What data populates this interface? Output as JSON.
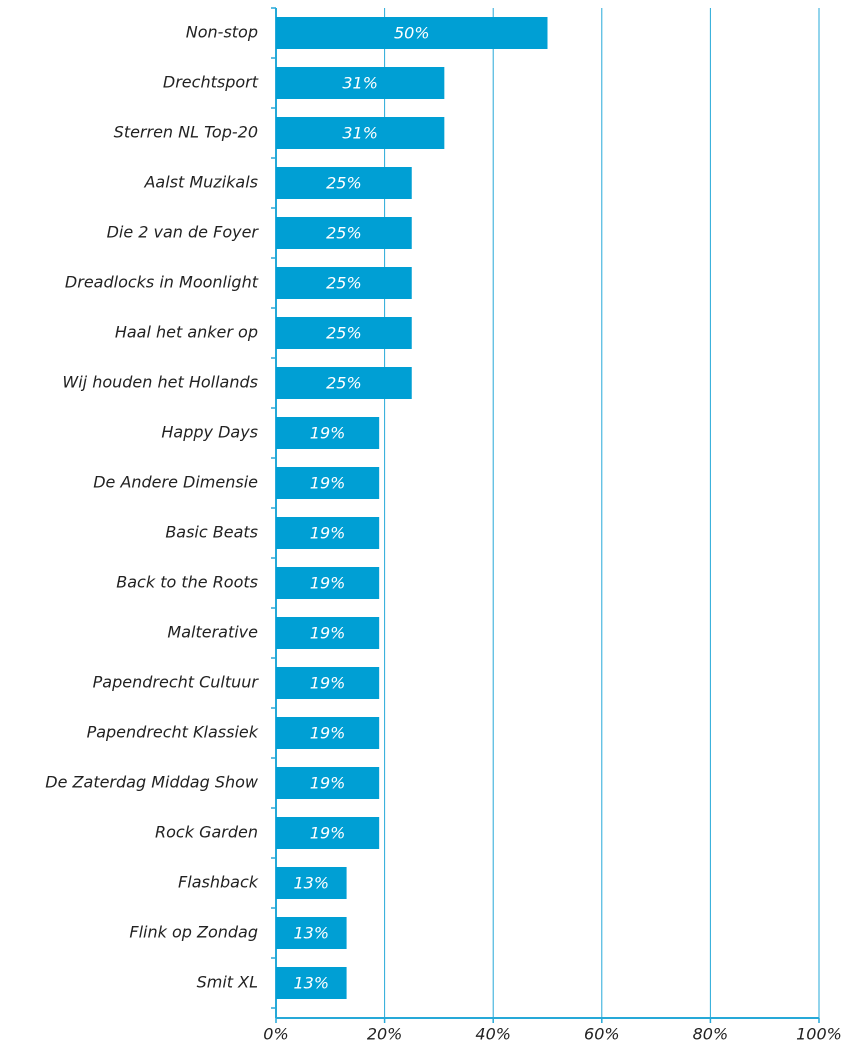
{
  "chart_data": {
    "type": "bar",
    "orientation": "horizontal",
    "color": "#009fd4",
    "categories": [
      "Non-stop",
      "Drechtsport",
      "Sterren NL Top-20",
      "Aalst Muzikals",
      "Die 2 van de Foyer",
      "Dreadlocks in Moonlight",
      "Haal het anker op",
      "Wij houden het Hollands",
      "Happy Days",
      "De Andere Dimensie",
      "Basic Beats",
      "Back to the Roots",
      "Malterative",
      "Papendrecht Cultuur",
      "Papendrecht Klassiek",
      "De Zaterdag Middag Show",
      "Rock Garden",
      "Flashback",
      "Flink op Zondag",
      "Smit XL"
    ],
    "values": [
      50,
      31,
      31,
      25,
      25,
      25,
      25,
      25,
      19,
      19,
      19,
      19,
      19,
      19,
      19,
      19,
      19,
      13,
      13,
      13
    ],
    "value_labels": [
      "50%",
      "31%",
      "31%",
      "25%",
      "25%",
      "25%",
      "25%",
      "25%",
      "19%",
      "19%",
      "19%",
      "19%",
      "19%",
      "19%",
      "19%",
      "19%",
      "19%",
      "13%",
      "13%",
      "13%"
    ],
    "xlim": [
      0,
      100
    ],
    "xticks": [
      {
        "value": 0,
        "label": "0%"
      },
      {
        "value": 20,
        "label": "20%"
      },
      {
        "value": 40,
        "label": "40%"
      },
      {
        "value": 60,
        "label": "60%"
      },
      {
        "value": 80,
        "label": "80%"
      },
      {
        "value": 100,
        "label": "100%"
      }
    ],
    "grid": true
  }
}
